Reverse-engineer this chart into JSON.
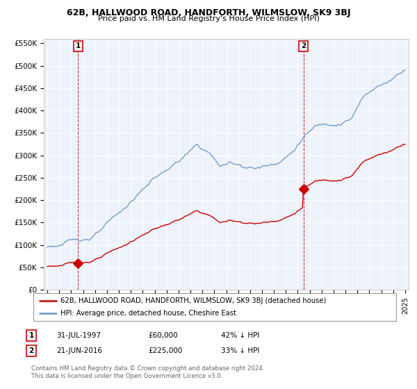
{
  "title": "62B, HALLWOOD ROAD, HANDFORTH, WILMSLOW, SK9 3BJ",
  "subtitle": "Price paid vs. HM Land Registry's House Price Index (HPI)",
  "ylabel_ticks": [
    "£0",
    "£50K",
    "£100K",
    "£150K",
    "£200K",
    "£250K",
    "£300K",
    "£350K",
    "£400K",
    "£450K",
    "£500K",
    "£550K"
  ],
  "ytick_values": [
    0,
    50000,
    100000,
    150000,
    200000,
    250000,
    300000,
    350000,
    400000,
    450000,
    500000,
    550000
  ],
  "sale1_date": 1997.58,
  "sale1_price": 60000,
  "sale2_date": 2016.47,
  "sale2_price": 225000,
  "red_line_color": "#cc0000",
  "blue_line_color": "#6699cc",
  "point_color": "#cc0000",
  "dashed_line_color": "#cc0000",
  "background_color": "#eef2fb",
  "legend_line1": "62B, HALLWOOD ROAD, HANDFORTH, WILMSLOW, SK9 3BJ (detached house)",
  "legend_line2": "HPI: Average price, detached house, Cheshire East",
  "footer": "Contains HM Land Registry data © Crown copyright and database right 2024.\nThis data is licensed under the Open Government Licence v3.0.",
  "xmin": 1994.7,
  "xmax": 2025.3,
  "ymin": 0,
  "ymax": 560000,
  "title_fontsize": 9.0,
  "subtitle_fontsize": 8.0
}
